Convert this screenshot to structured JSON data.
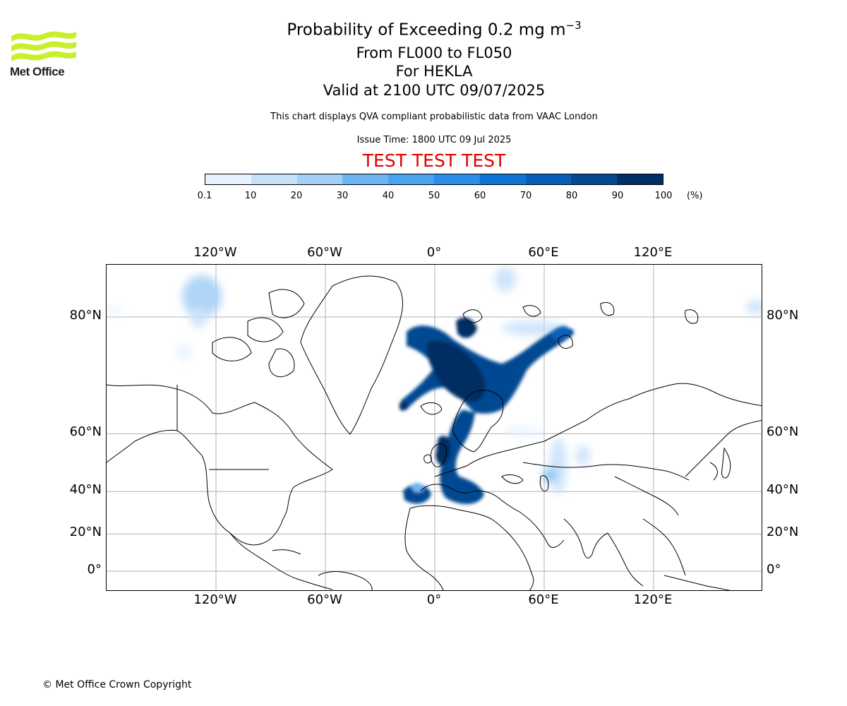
{
  "header": {
    "logo_text": "Met Office",
    "title_main": "Probability of Exceeding 0.2 mg m",
    "title_exponent": "−3",
    "flight_levels": "From FL000 to FL050",
    "volcano": "For HEKLA",
    "valid_time": "Valid at 2100 UTC 09/07/2025",
    "description": "This chart displays QVA compliant probabilistic data from VAAC London",
    "issue_time": "Issue Time: 1800 UTC 09 Jul 2025",
    "test_banner": "TEST TEST TEST"
  },
  "colors": {
    "test_banner": "#e00000",
    "logo": "#c8f02a",
    "coastline": "#000000",
    "grid": "#b0b0b0"
  },
  "legend": {
    "ticks": [
      "0.1",
      "10",
      "20",
      "30",
      "40",
      "50",
      "60",
      "70",
      "80",
      "90",
      "100"
    ],
    "unit": "(%)",
    "bins": [
      {
        "range": "0.1-10",
        "color": "#e6f2fd"
      },
      {
        "range": "10-20",
        "color": "#c5e0f9"
      },
      {
        "range": "20-30",
        "color": "#a3cef6"
      },
      {
        "range": "30-40",
        "color": "#6db5f2"
      },
      {
        "range": "40-50",
        "color": "#4aa3ef"
      },
      {
        "range": "50-60",
        "color": "#2a8eeb"
      },
      {
        "range": "60-70",
        "color": "#0d74d6"
      },
      {
        "range": "70-80",
        "color": "#095fb8"
      },
      {
        "range": "80-90",
        "color": "#044a92"
      },
      {
        "range": "90-100",
        "color": "#002f64"
      }
    ]
  },
  "map": {
    "projection": "Mercator",
    "lon_labels": [
      "120°W",
      "60°W",
      "0°",
      "60°E",
      "120°E"
    ],
    "lon_values": [
      -120,
      -60,
      0,
      60,
      120
    ],
    "lat_labels": [
      "80°N",
      "60°N",
      "40°N",
      "20°N",
      "0°"
    ],
    "lat_values": [
      80,
      60,
      40,
      20,
      0
    ],
    "grid": true
  },
  "footer": {
    "copyright": "© Met Office Crown Copyright"
  }
}
